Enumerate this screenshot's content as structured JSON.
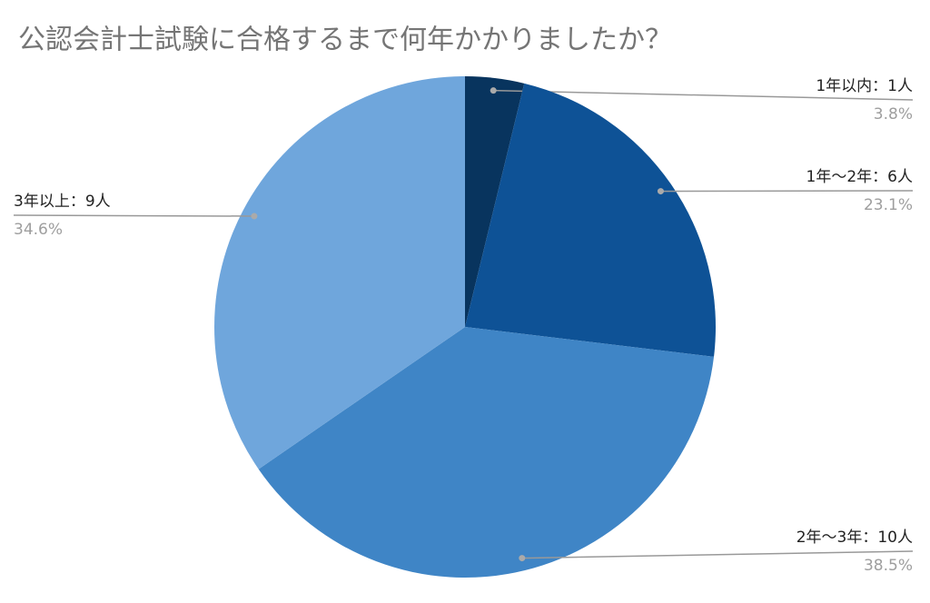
{
  "chart_data": {
    "type": "pie",
    "title": "公認会計士試験に合格するまで何年かかりましたか？",
    "categories": [
      "1年以内：1人",
      "1年〜2年：6人",
      "2年〜3年：10人",
      "3年以上：9人"
    ],
    "values": [
      3.8,
      23.1,
      38.5,
      34.6
    ],
    "value_labels": [
      "3.8%",
      "23.1%",
      "38.5%",
      "34.6%"
    ],
    "colors": [
      "#08345e",
      "#0e5296",
      "#3f85c6",
      "#6fa6dc"
    ]
  }
}
